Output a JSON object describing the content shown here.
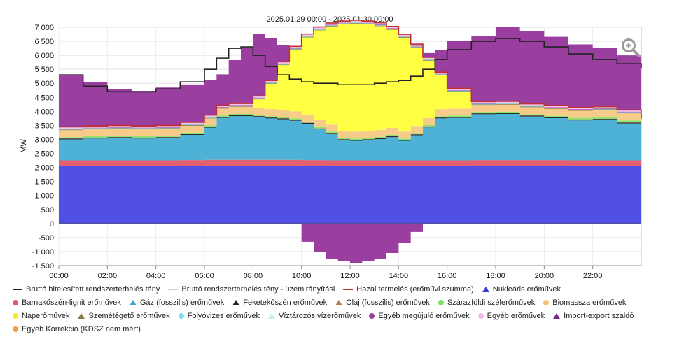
{
  "chart_data": {
    "type": "area",
    "title": "2025.01.29 00:00 - 2025.01.30 00:00",
    "ylabel": "MW",
    "ylim": [
      -1500,
      7000
    ],
    "yticks": [
      "-1 500",
      "-1 000",
      "-500",
      "0",
      "500",
      "1 000",
      "1 500",
      "2 000",
      "2 500",
      "3 000",
      "3 500",
      "4 000",
      "4 500",
      "5 000",
      "5 500",
      "6 000",
      "6 500",
      "7 000"
    ],
    "xticks": [
      "00:00",
      "02:00",
      "04:00",
      "06:00",
      "08:00",
      "10:00",
      "12:00",
      "14:00",
      "16:00",
      "18:00",
      "20:00",
      "22:00"
    ],
    "x_hours": [
      0,
      1,
      2,
      3,
      4,
      5,
      6,
      6.5,
      7,
      7.5,
      8,
      8.5,
      9,
      9.5,
      10,
      10.5,
      11,
      11.5,
      12,
      12.5,
      13,
      13.5,
      14,
      14.5,
      15,
      15.5,
      16,
      17,
      18,
      19,
      20,
      21,
      22,
      23,
      24
    ],
    "stacks": [
      {
        "name": "Nukleáris erőművek",
        "color": "#5050e6",
        "values": [
          2050,
          2050,
          2050,
          2050,
          2050,
          2050,
          2050,
          2050,
          2050,
          2050,
          2050,
          2050,
          2050,
          2050,
          2050,
          2050,
          2050,
          2050,
          2050,
          2050,
          2050,
          2050,
          2050,
          2050,
          2050,
          2050,
          2050,
          2050,
          2050,
          2050,
          2050,
          2050,
          2050,
          2050,
          2050
        ]
      },
      {
        "name": "Barnakőszén-lignit erőművek",
        "color": "#e46070",
        "values": [
          200,
          200,
          200,
          200,
          200,
          210,
          220,
          220,
          220,
          220,
          220,
          220,
          220,
          220,
          210,
          210,
          200,
          200,
          200,
          200,
          200,
          200,
          200,
          200,
          200,
          200,
          200,
          210,
          210,
          210,
          210,
          200,
          200,
          200,
          200
        ]
      },
      {
        "name": "Gáz (fosszilis) erőművek",
        "color": "#4eb2d6",
        "values": [
          750,
          780,
          800,
          780,
          800,
          900,
          1150,
          1500,
          1560,
          1560,
          1530,
          1480,
          1450,
          1400,
          1300,
          1100,
          950,
          720,
          700,
          720,
          760,
          830,
          700,
          900,
          1180,
          1500,
          1520,
          1640,
          1650,
          1560,
          1500,
          1430,
          1450,
          1320,
          1000
        ]
      },
      {
        "name": "Feketekőszén erőművek",
        "color": "#2a2a2a",
        "values": [
          30,
          30,
          30,
          30,
          30,
          30,
          30,
          30,
          30,
          30,
          30,
          30,
          30,
          30,
          30,
          30,
          30,
          30,
          30,
          30,
          30,
          30,
          30,
          30,
          30,
          30,
          30,
          30,
          30,
          30,
          30,
          30,
          30,
          30,
          30
        ]
      },
      {
        "name": "Olaj (fosszilis) erőművek",
        "color": "#b07f5a",
        "values": [
          10,
          10,
          10,
          10,
          10,
          10,
          10,
          10,
          10,
          10,
          10,
          10,
          10,
          10,
          10,
          10,
          10,
          10,
          10,
          10,
          10,
          10,
          10,
          10,
          10,
          10,
          10,
          10,
          10,
          10,
          10,
          10,
          10,
          10,
          10
        ]
      },
      {
        "name": "Szárazföldi szélerőművek",
        "color": "#86e868",
        "values": [
          40,
          40,
          40,
          40,
          40,
          40,
          40,
          40,
          40,
          40,
          40,
          40,
          40,
          40,
          40,
          40,
          40,
          40,
          40,
          40,
          40,
          40,
          40,
          40,
          40,
          40,
          40,
          40,
          40,
          40,
          40,
          50,
          60,
          70,
          80
        ]
      },
      {
        "name": "Biomassza erőművek",
        "color": "#f7cc8a",
        "values": [
          250,
          250,
          250,
          250,
          250,
          250,
          250,
          250,
          250,
          250,
          250,
          250,
          250,
          250,
          250,
          250,
          250,
          250,
          250,
          250,
          250,
          250,
          250,
          250,
          250,
          250,
          250,
          250,
          250,
          250,
          250,
          250,
          250,
          250,
          250
        ]
      },
      {
        "name": "Naperőművek",
        "color": "#ffff44",
        "values": [
          0,
          0,
          0,
          0,
          0,
          0,
          0,
          0,
          0,
          0,
          300,
          900,
          1600,
          2200,
          2750,
          3200,
          3500,
          3800,
          3850,
          3800,
          3700,
          3500,
          3350,
          2800,
          2050,
          1200,
          600,
          0,
          0,
          0,
          0,
          0,
          0,
          0,
          0
        ]
      },
      {
        "name": "Szemétégető erőművek",
        "color": "#8c7a48",
        "values": [
          20,
          20,
          20,
          20,
          20,
          20,
          20,
          20,
          20,
          20,
          20,
          20,
          20,
          20,
          20,
          20,
          20,
          20,
          20,
          20,
          20,
          20,
          20,
          20,
          20,
          20,
          20,
          20,
          20,
          20,
          20,
          20,
          20,
          20,
          20
        ]
      },
      {
        "name": "Folyóvizes erőművek",
        "color": "#7ee0ea",
        "values": [
          20,
          20,
          20,
          20,
          20,
          20,
          20,
          20,
          20,
          20,
          20,
          20,
          20,
          20,
          20,
          20,
          20,
          20,
          20,
          20,
          20,
          20,
          20,
          20,
          20,
          20,
          20,
          20,
          20,
          20,
          20,
          20,
          20,
          20,
          20
        ]
      },
      {
        "name": "Víztározós vízerőművek",
        "color": "#d8f4f8",
        "values": [
          0,
          0,
          0,
          0,
          0,
          0,
          0,
          0,
          0,
          0,
          0,
          0,
          0,
          0,
          0,
          0,
          0,
          0,
          0,
          0,
          0,
          0,
          0,
          0,
          0,
          0,
          0,
          0,
          0,
          0,
          0,
          0,
          0,
          0,
          0
        ]
      },
      {
        "name": "Egyéb megújuló erőművek",
        "color": "#b44aa6",
        "values": [
          20,
          20,
          20,
          20,
          20,
          20,
          20,
          20,
          20,
          20,
          20,
          20,
          20,
          20,
          20,
          20,
          20,
          20,
          20,
          20,
          20,
          20,
          20,
          20,
          20,
          20,
          20,
          20,
          20,
          20,
          20,
          20,
          20,
          20,
          20
        ]
      },
      {
        "name": "Egyéb erőművek",
        "color": "#f2c3ec",
        "values": [
          60,
          60,
          60,
          60,
          60,
          60,
          60,
          60,
          60,
          60,
          60,
          60,
          60,
          60,
          60,
          60,
          60,
          60,
          60,
          60,
          60,
          60,
          60,
          60,
          60,
          60,
          60,
          60,
          60,
          60,
          60,
          60,
          60,
          60,
          60
        ]
      }
    ],
    "import_export": {
      "name": "Import-export szaldó",
      "color": "#9a3ea0",
      "values": [
        1850,
        1550,
        1300,
        1250,
        1350,
        1350,
        1250,
        1100,
        1550,
        2000,
        2200,
        1500,
        600,
        0,
        -650,
        -1000,
        -1250,
        -1350,
        -1400,
        -1350,
        -1250,
        -1050,
        -700,
        -300,
        150,
        800,
        1700,
        2350,
        2650,
        2600,
        2450,
        2250,
        2100,
        1950,
        1850
      ]
    },
    "lines": [
      {
        "name": "Bruttó hitelesített rendszerterhelés tény",
        "color": "#222222",
        "values": [
          5300,
          4900,
          4700,
          4700,
          4800,
          5050,
          5500,
          5900,
          6250,
          6300,
          6000,
          5600,
          5300,
          5150,
          5050,
          5000,
          5000,
          4950,
          4950,
          4950,
          5000,
          5050,
          5100,
          5250,
          5500,
          5850,
          6200,
          6500,
          6600,
          6500,
          6300,
          6050,
          5850,
          5700,
          5550
        ]
      },
      {
        "name": "Hazai termelés (erőművi szumma)",
        "color": "#c03030",
        "note": "drawn on top of generation stack"
      }
    ],
    "legend": [
      {
        "label": "Bruttó hitelesített rendszerterhelés tény",
        "color": "#222222",
        "marker": "line"
      },
      {
        "label": "Bruttó rendszerterhelés tény - üzemirányítási",
        "color": "#cfcfcf",
        "marker": "line"
      },
      {
        "label": "Hazai termelés (erőművi szumma)",
        "color": "#c03030",
        "marker": "line"
      },
      {
        "label": "Nukleáris erőművek",
        "color": "#3535d8",
        "marker": "triangle"
      },
      {
        "label": "Barnakőszén-lignit erőművek",
        "color": "#e05a6a",
        "marker": "dot"
      },
      {
        "label": "Gáz (fosszilis) erőművek",
        "color": "#3aa6d2",
        "marker": "triangle"
      },
      {
        "label": "Feketekőszén erőművek",
        "color": "#222222",
        "marker": "triangle"
      },
      {
        "label": "Olaj (fosszilis) erőművek",
        "color": "#b07f5a",
        "marker": "triangle"
      },
      {
        "label": "Szárazföldi szélerőművek",
        "color": "#7de060",
        "marker": "dot"
      },
      {
        "label": "Biomassza erőművek",
        "color": "#f5c27a",
        "marker": "dot"
      },
      {
        "label": "Naperőművek",
        "color": "#f0ec2a",
        "marker": "dot"
      },
      {
        "label": "Szemétégető erőművek",
        "color": "#8c7a48",
        "marker": "triangle"
      },
      {
        "label": "Folyóvizes erőművek",
        "color": "#7ee0ea",
        "marker": "dot"
      },
      {
        "label": "Víztározós vízerőművek",
        "color": "#c8eef4",
        "marker": "triangle"
      },
      {
        "label": "Egyéb megújuló erőművek",
        "color": "#9a3ea0",
        "marker": "dot"
      },
      {
        "label": "Egyéb erőművek",
        "color": "#f2b6ea",
        "marker": "dot"
      },
      {
        "label": "Import-export szaldó",
        "color": "#7a2a88",
        "marker": "triangle"
      },
      {
        "label": "Egyéb Korrekció (KDSZ nem mért)",
        "color": "#f0a040",
        "marker": "dot"
      }
    ]
  },
  "ui": {
    "zoom_icon": "zoom-in-icon"
  }
}
